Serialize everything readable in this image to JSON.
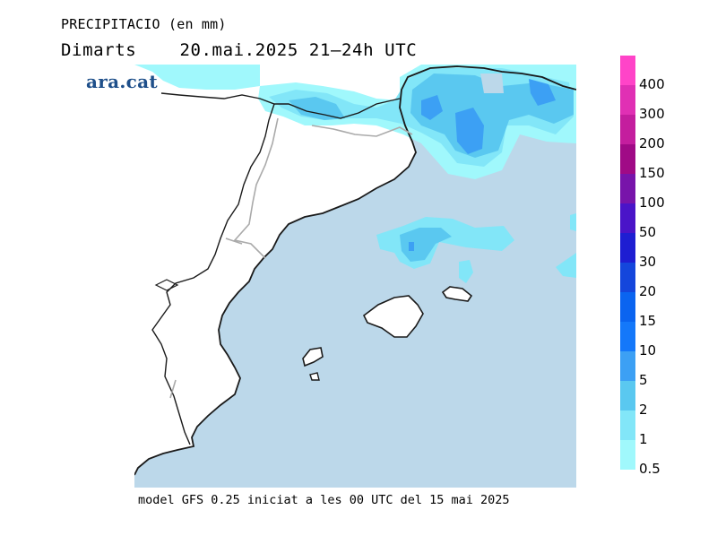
{
  "header": {
    "title": "PRECIPITACIO (en mm)",
    "day": "Dimarts",
    "date_time": "20.mai.2025 21–24h UTC"
  },
  "logo": {
    "text": "ara.cat"
  },
  "footer": {
    "text": "model GFS 0.25 iniciat a les 00 UTC del 15 mai 2025"
  },
  "colors": {
    "sea": "#bcd8ea",
    "land": "#ffffff",
    "coast": "#1a1a1a",
    "border": "#aaaaaa"
  },
  "legend": {
    "items": [
      {
        "label": "400",
        "color": "#ff44c8"
      },
      {
        "label": "300",
        "color": "#e030b4"
      },
      {
        "label": "200",
        "color": "#c41e9e"
      },
      {
        "label": "150",
        "color": "#a00a86"
      },
      {
        "label": "100",
        "color": "#7814aa"
      },
      {
        "label": "50",
        "color": "#4a14c8"
      },
      {
        "label": "30",
        "color": "#1e1ed2"
      },
      {
        "label": "20",
        "color": "#1446dc"
      },
      {
        "label": "15",
        "color": "#0a64f0"
      },
      {
        "label": "10",
        "color": "#1478fa"
      },
      {
        "label": "5",
        "color": "#3ca0f4"
      },
      {
        "label": "2",
        "color": "#5ac8f0"
      },
      {
        "label": "1",
        "color": "#82e6f8"
      },
      {
        "label": "0.5",
        "color": "#a0f8fc"
      }
    ]
  }
}
